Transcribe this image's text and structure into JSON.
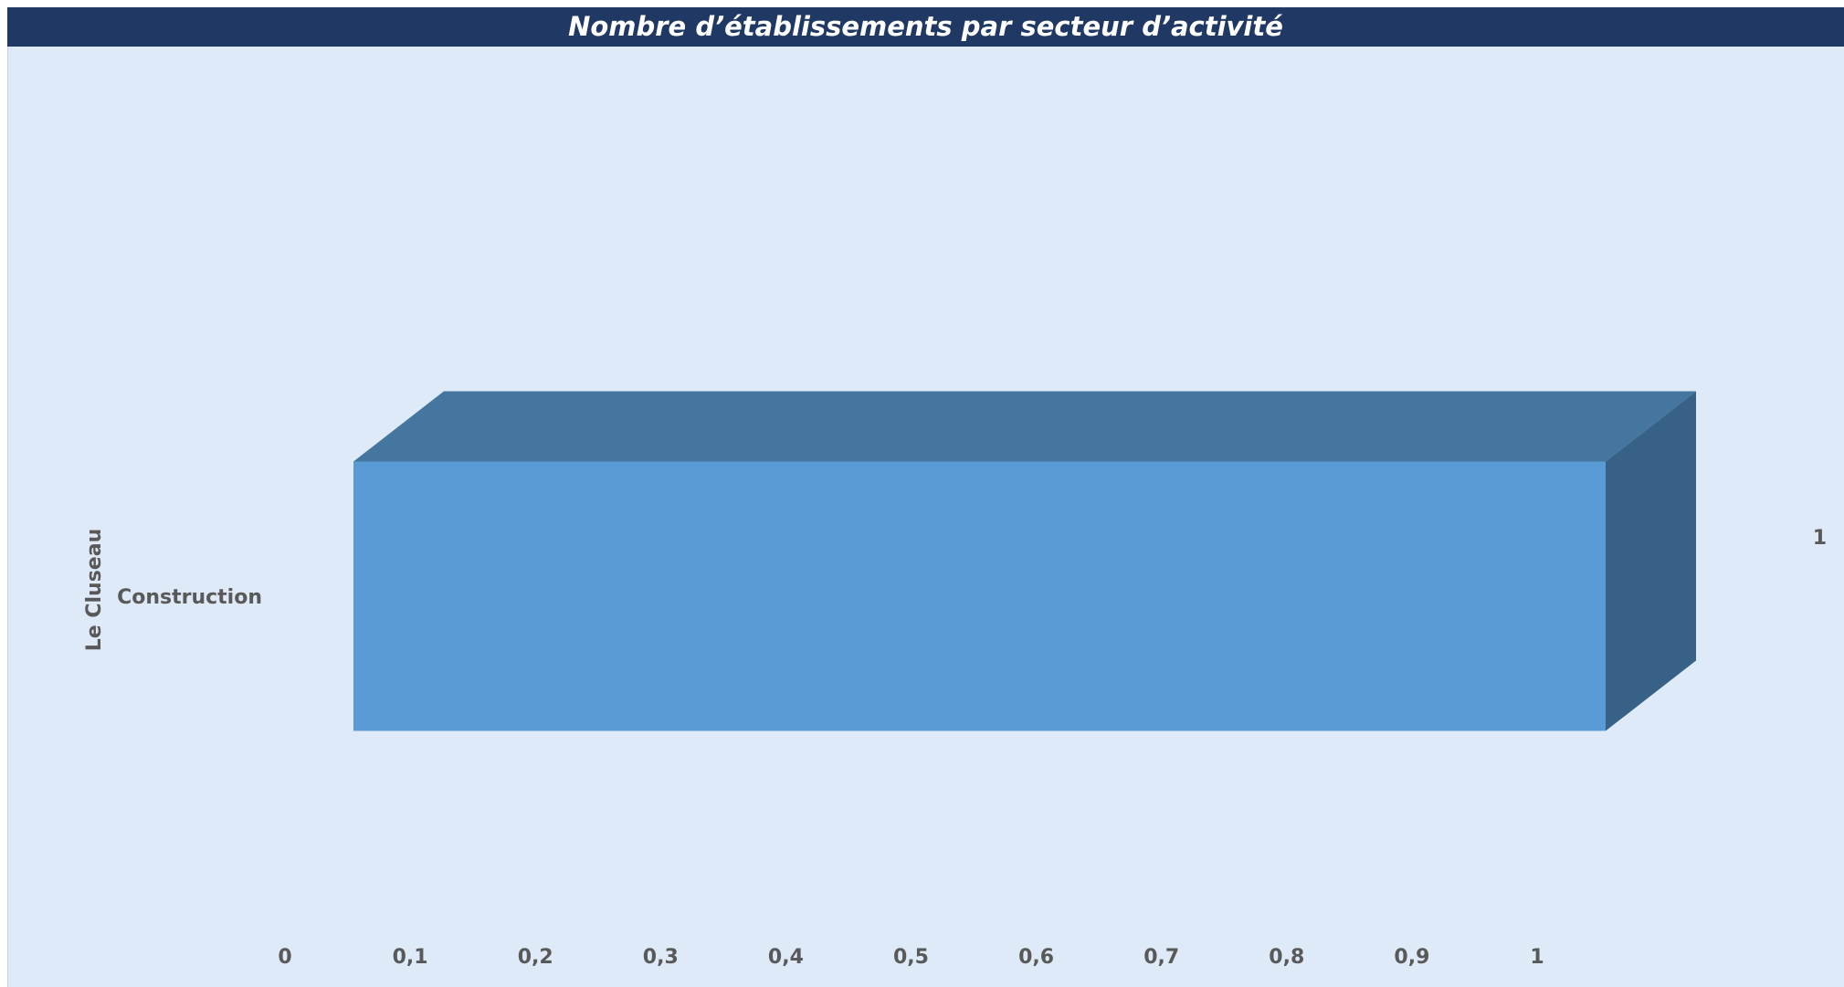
{
  "chart_data": {
    "type": "bar",
    "orientation": "horizontal",
    "style": "3d",
    "title": "Nombre d’établissements par secteur d’activité",
    "group_label": "Le Cluseau",
    "categories": [
      "Construction"
    ],
    "values": [
      1
    ],
    "data_labels": [
      "1"
    ],
    "xlim": [
      0,
      1
    ],
    "x_ticks": [
      0,
      0.1,
      0.2,
      0.3,
      0.4,
      0.5,
      0.6,
      0.7,
      0.8,
      0.9,
      1
    ],
    "x_tick_labels": [
      "0",
      "0,1",
      "0,2",
      "0,3",
      "0,4",
      "0,5",
      "0,6",
      "0,7",
      "0,8",
      "0,9",
      "1"
    ],
    "grid": false,
    "legend": "none",
    "colors": {
      "bar_front": "#5b9bd5",
      "bar_top": "#44769f",
      "bar_side": "#376186",
      "title_bg": "#1f3864",
      "plot_bg": "#deeaf7",
      "text": "#595959"
    }
  }
}
